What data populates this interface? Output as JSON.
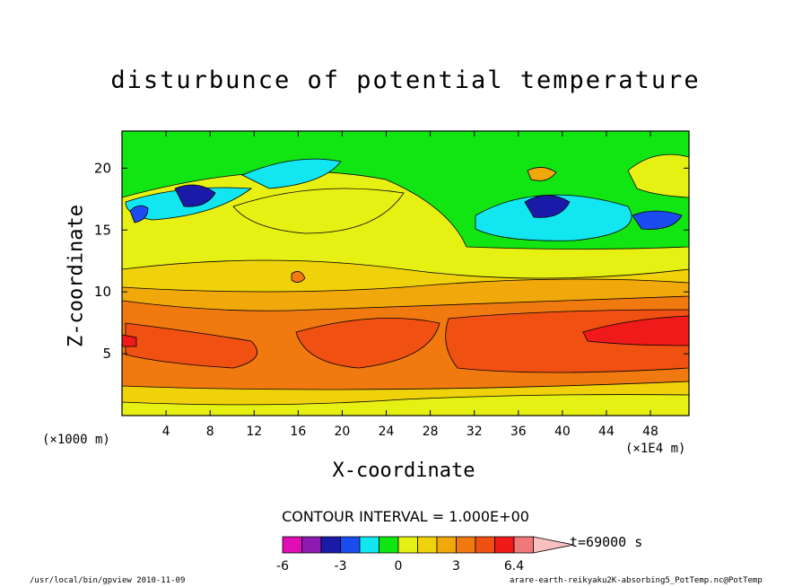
{
  "chart_data": {
    "type": "heatmap",
    "title": "disturbunce of potential temperature",
    "xlabel": "X-coordinate",
    "ylabel": "Z-coordinate",
    "x_unit_left": "(×1000 m)",
    "x_unit_right": "(×1E4 m)",
    "x_ticks": [
      "4",
      "8",
      "12",
      "16",
      "20",
      "24",
      "28",
      "32",
      "36",
      "40",
      "44",
      "48"
    ],
    "y_ticks": [
      "5",
      "10",
      "15",
      "20"
    ],
    "xlim": [
      0,
      51.5
    ],
    "ylim": [
      0,
      23
    ],
    "grid": false,
    "contour_interval_text": "CONTOUR INTERVAL = 1.000E+00",
    "time_label": "t=69000 s",
    "colorbar": {
      "colors": [
        "#e00cb4",
        "#8c1ab0",
        "#1a1aa8",
        "#1a4cf0",
        "#12e6f0",
        "#12e612",
        "#e6f012",
        "#f0d20a",
        "#f0a80a",
        "#f07a10",
        "#f05012",
        "#f01a1a",
        "#f07878",
        "#f8c0c0"
      ],
      "tick_labels": [
        "-6",
        "-3",
        "0",
        "3",
        "6.4"
      ]
    }
  },
  "footer_left": "/usr/local/bin/gpview  2010-11-09",
  "footer_right": "arare-earth-reikyaku2K-absorbing5_PotTemp.nc@PotTemp"
}
